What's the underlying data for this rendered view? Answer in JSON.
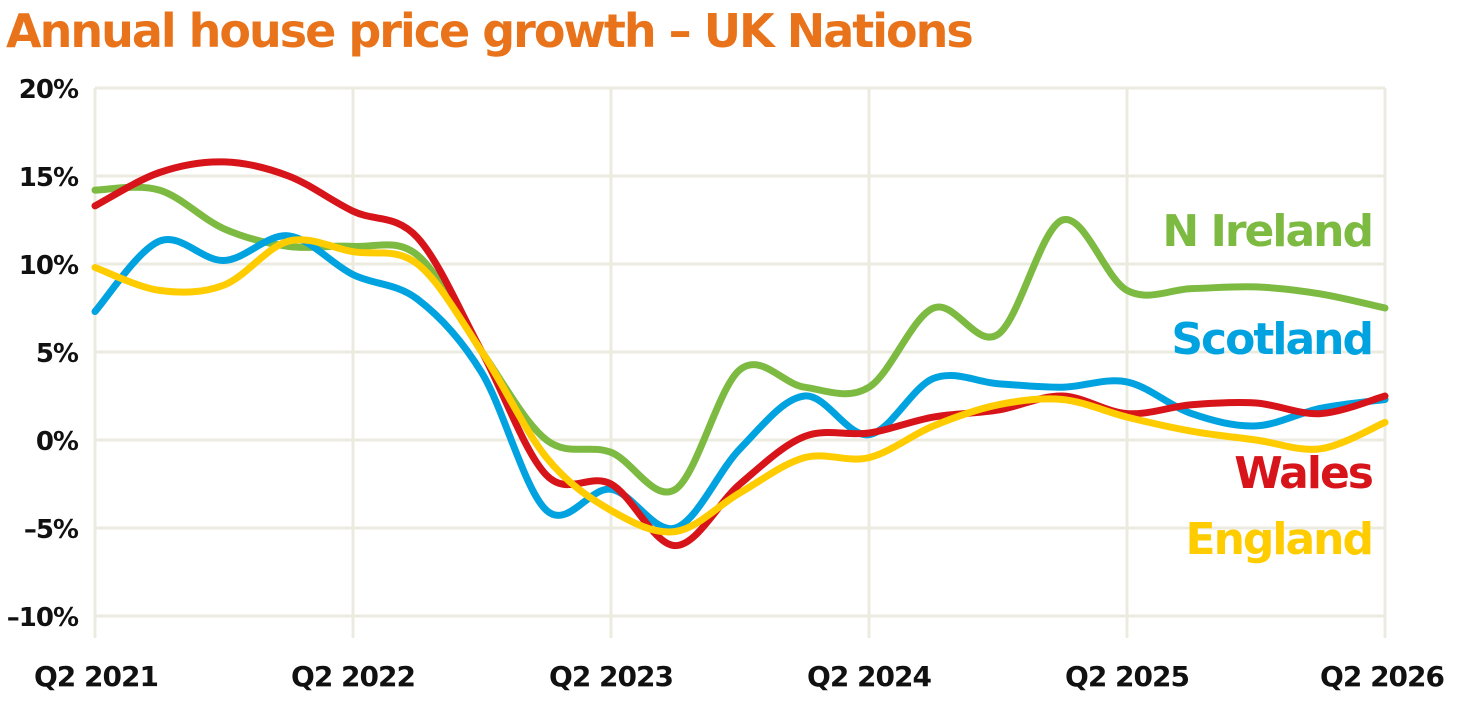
{
  "chart_data": {
    "type": "line",
    "title": "Annual house price growth – UK Nations",
    "title_color": "#E8731A",
    "xlabel": "",
    "ylabel": "",
    "x_ticks": [
      "Q2 2021",
      "Q2 2022",
      "Q2 2023",
      "Q2 2024",
      "Q2 2025",
      "Q2 2026"
    ],
    "y_ticks": [
      "20%",
      "15%",
      "10%",
      "5%",
      "0%",
      "–5%",
      "–10%"
    ],
    "ylim": [
      -10,
      20
    ],
    "xlim": [
      2021.25,
      2026.25
    ],
    "grid": true,
    "grid_color": "#ECEBDF",
    "legend": "inline-right",
    "series": [
      {
        "name": "N Ireland",
        "color": "#7DBA42",
        "x": [
          2021.25,
          2021.5,
          2021.75,
          2022.0,
          2022.25,
          2022.5,
          2022.75,
          2023.0,
          2023.25,
          2023.5,
          2023.75,
          2024.0,
          2024.25,
          2024.5,
          2024.75,
          2025.0,
          2025.25,
          2025.5,
          2025.75,
          2026.0,
          2026.25
        ],
        "values": [
          14.2,
          14.2,
          12.0,
          11.0,
          11.0,
          10.5,
          5.0,
          0.0,
          -0.7,
          -2.8,
          4.0,
          3.0,
          3.0,
          7.5,
          6.0,
          12.5,
          8.5,
          8.6,
          8.7,
          8.3,
          7.5
        ]
      },
      {
        "name": "Scotland",
        "color": "#00A3E0",
        "x": [
          2021.25,
          2021.5,
          2021.75,
          2022.0,
          2022.25,
          2022.5,
          2022.75,
          2023.0,
          2023.25,
          2023.5,
          2023.75,
          2024.0,
          2024.25,
          2024.5,
          2024.75,
          2025.0,
          2025.25,
          2025.5,
          2025.75,
          2026.0,
          2026.25
        ],
        "values": [
          7.3,
          11.3,
          10.2,
          11.6,
          9.4,
          8.0,
          3.8,
          -4.0,
          -2.8,
          -5.0,
          -0.5,
          2.5,
          0.3,
          3.5,
          3.2,
          3.0,
          3.3,
          1.5,
          0.8,
          1.8,
          2.3
        ]
      },
      {
        "name": "Wales",
        "color": "#D7141A",
        "x": [
          2021.25,
          2021.5,
          2021.75,
          2022.0,
          2022.25,
          2022.5,
          2022.75,
          2023.0,
          2023.25,
          2023.5,
          2023.75,
          2024.0,
          2024.25,
          2024.5,
          2024.75,
          2025.0,
          2025.25,
          2025.5,
          2025.75,
          2026.0,
          2026.25
        ],
        "values": [
          13.3,
          15.2,
          15.8,
          15.0,
          13.0,
          11.5,
          5.0,
          -2.0,
          -2.5,
          -6.0,
          -2.5,
          0.2,
          0.4,
          1.3,
          1.7,
          2.5,
          1.5,
          2.0,
          2.1,
          1.5,
          2.5
        ]
      },
      {
        "name": "England",
        "color": "#FFCC00",
        "x": [
          2021.25,
          2021.5,
          2021.75,
          2022.0,
          2022.25,
          2022.5,
          2022.75,
          2023.0,
          2023.25,
          2023.5,
          2023.75,
          2024.0,
          2024.25,
          2024.5,
          2024.75,
          2025.0,
          2025.25,
          2025.5,
          2025.75,
          2026.0,
          2026.25
        ],
        "values": [
          9.8,
          8.5,
          8.8,
          11.3,
          10.7,
          10.0,
          5.0,
          -1.0,
          -4.0,
          -5.2,
          -3.0,
          -1.0,
          -1.0,
          0.8,
          2.0,
          2.3,
          1.3,
          0.5,
          0.0,
          -0.5,
          1.0
        ]
      }
    ]
  }
}
